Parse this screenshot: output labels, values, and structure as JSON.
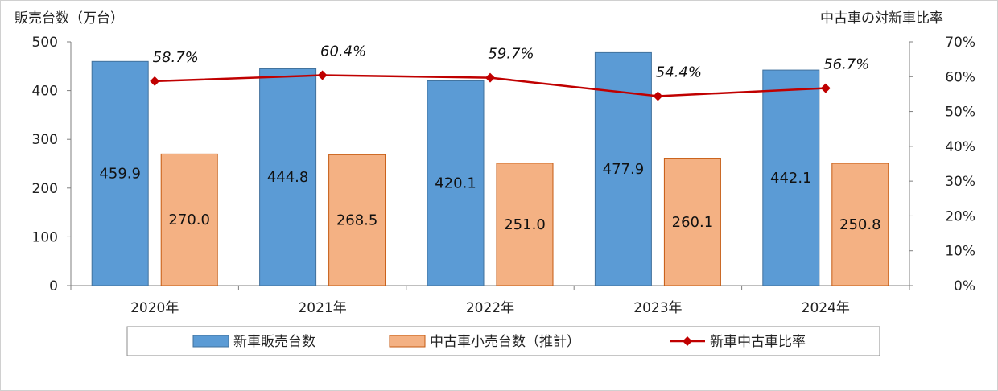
{
  "chart_data": {
    "type": "bar",
    "categories": [
      "2020年",
      "2021年",
      "2022年",
      "2023年",
      "2024年"
    ],
    "series": [
      {
        "name": "新車販売台数",
        "kind": "bar",
        "axis": "left",
        "color": "#5b9bd5",
        "values": [
          459.9,
          444.8,
          420.1,
          477.9,
          442.1
        ],
        "labels": [
          "459.9",
          "444.8",
          "420.1",
          "477.9",
          "442.1"
        ]
      },
      {
        "name": "中古車小売台数（推計）",
        "kind": "bar",
        "axis": "right-hidden",
        "color": "#f4b183",
        "values": [
          270.0,
          268.5,
          251.0,
          260.1,
          250.8
        ],
        "labels": [
          "270.0",
          "268.5",
          "251.0",
          "260.1",
          "250.8"
        ]
      },
      {
        "name": "新車中古車比率",
        "kind": "line",
        "axis": "right",
        "color": "#c00000",
        "values": [
          58.7,
          60.4,
          59.7,
          54.4,
          56.7
        ],
        "labels": [
          "58.7%",
          "60.4%",
          "59.7%",
          "54.4%",
          "56.7%"
        ]
      }
    ],
    "ylabel_left": "販売台数（万台）",
    "ylabel_right": "中古車の対新車比率",
    "ylim_left": [
      0,
      500
    ],
    "yticks_left": [
      "0",
      "100",
      "200",
      "300",
      "400",
      "500"
    ],
    "ylim_right": [
      0,
      70
    ],
    "yticks_right": [
      "0%",
      "10%",
      "20%",
      "30%",
      "40%",
      "50%",
      "60%",
      "70%"
    ],
    "grid": false,
    "legend_position": "bottom"
  }
}
